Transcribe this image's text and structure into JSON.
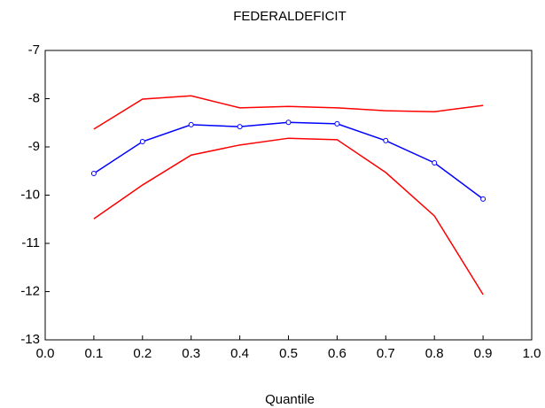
{
  "chart_data": {
    "type": "line",
    "title": "FEDERALDEFICIT",
    "x_label": "Quantile",
    "x": [
      0.1,
      0.2,
      0.3,
      0.4,
      0.5,
      0.6,
      0.7,
      0.8,
      0.9
    ],
    "series": [
      {
        "color": "#ff0000",
        "markers": false,
        "values": [
          -8.63,
          -8.01,
          -7.94,
          -8.19,
          -8.16,
          -8.19,
          -8.25,
          -8.27,
          -8.14
        ]
      },
      {
        "color": "#0000ff",
        "markers": true,
        "values": [
          -9.55,
          -8.89,
          -8.54,
          -8.58,
          -8.49,
          -8.52,
          -8.87,
          -9.33,
          -10.08
        ]
      },
      {
        "color": "#ff0000",
        "markers": false,
        "values": [
          -10.49,
          -9.79,
          -9.17,
          -8.96,
          -8.82,
          -8.85,
          -9.53,
          -10.43,
          -12.06
        ]
      }
    ],
    "xlim": [
      0,
      1
    ],
    "xticks": [
      {
        "value": 0,
        "label": "0.0"
      },
      0.1,
      0.2,
      0.3,
      0.4,
      0.5,
      0.6,
      0.7,
      0.8,
      0.9,
      {
        "value": 1,
        "label": "1.0"
      }
    ],
    "ylim": [
      -13,
      -7
    ],
    "yticks": [
      -7,
      -8,
      -9,
      -10,
      -11,
      -12,
      -13
    ],
    "grid": false
  }
}
